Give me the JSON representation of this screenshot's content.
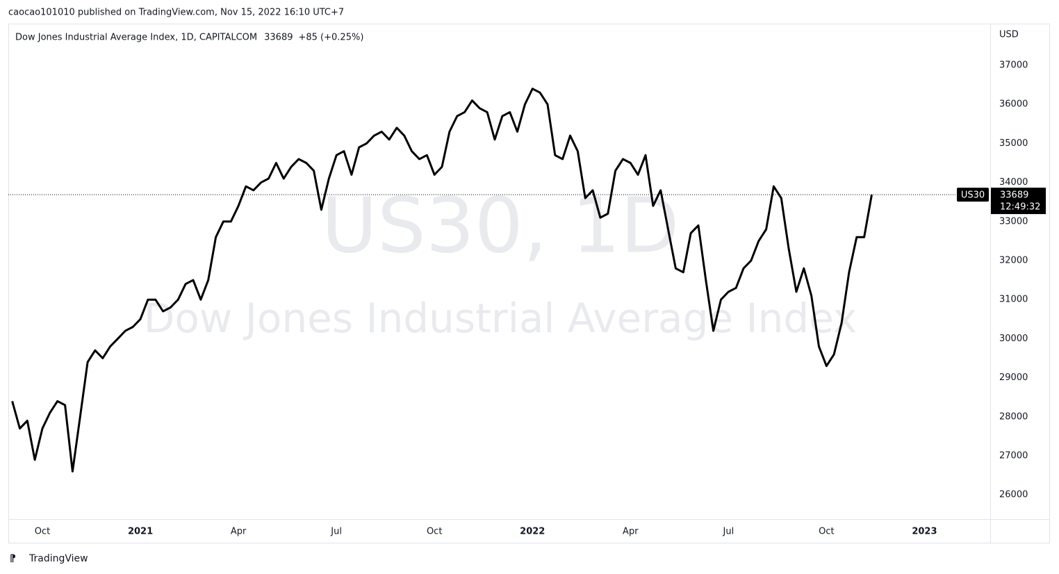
{
  "header": {
    "byline": "caocao101010 published on TradingView.com, Nov 15, 2022 16:10 UTC+7"
  },
  "footer": {
    "brand": "TradingView"
  },
  "chart_data": {
    "type": "line",
    "title": "Dow Jones Industrial Average Index, 1D, CAPITALCOM",
    "change": "+85 (+0.25%)",
    "watermark": "US30, 1D",
    "watermark_subtitle": "Dow Jones Industrial Average Index",
    "symbol": "US30",
    "countdown": "12:49:32",
    "y_unit": "USD",
    "color": "#000000",
    "grid": false,
    "ylim": [
      25380,
      38050
    ],
    "yticks": [
      26000,
      27000,
      28000,
      29000,
      30000,
      31000,
      32000,
      33000,
      34000,
      35000,
      36000,
      37000
    ],
    "categories": [
      null,
      null,
      null,
      null,
      "Oct",
      null,
      null,
      null,
      null,
      null,
      null,
      null,
      null,
      null,
      null,
      null,
      null,
      "2021",
      null,
      null,
      null,
      null,
      null,
      null,
      null,
      null,
      null,
      null,
      null,
      null,
      "Apr",
      null,
      null,
      null,
      null,
      null,
      null,
      null,
      null,
      null,
      null,
      null,
      null,
      "Jul",
      null,
      null,
      null,
      null,
      null,
      null,
      null,
      null,
      null,
      null,
      null,
      null,
      "Oct",
      null,
      null,
      null,
      null,
      null,
      null,
      null,
      null,
      null,
      null,
      null,
      null,
      "2022",
      null,
      null,
      null,
      null,
      null,
      null,
      null,
      null,
      null,
      null,
      null,
      null,
      "Apr",
      null,
      null,
      null,
      null,
      null,
      null,
      null,
      null,
      null,
      null,
      null,
      null,
      "Jul",
      null,
      null,
      null,
      null,
      null,
      null,
      null,
      null,
      null,
      null,
      null,
      null,
      "Oct",
      null,
      null,
      null,
      null,
      null,
      null,
      null,
      null,
      null,
      null,
      null,
      null,
      "2023",
      null,
      null,
      null,
      null,
      null,
      null,
      null,
      null
    ],
    "values": [
      28400,
      27700,
      27900,
      26900,
      27700,
      28100,
      28400,
      28300,
      26600,
      28000,
      29400,
      29700,
      29500,
      29800,
      30000,
      30200,
      30300,
      30500,
      31000,
      31000,
      30700,
      30800,
      31000,
      31400,
      31500,
      31000,
      31500,
      32600,
      33000,
      33000,
      33400,
      33900,
      33800,
      34000,
      34100,
      34500,
      34100,
      34400,
      34600,
      34500,
      34300,
      33300,
      34100,
      34700,
      34800,
      34200,
      34900,
      35000,
      35200,
      35300,
      35100,
      35400,
      35200,
      34800,
      34600,
      34700,
      34200,
      34400,
      35300,
      35700,
      35800,
      36100,
      35900,
      35800,
      35100,
      35700,
      35800,
      35300,
      36000,
      36400,
      36300,
      36000,
      34700,
      34600,
      35200,
      34800,
      33600,
      33800,
      33100,
      33200,
      34300,
      34600,
      34500,
      34200,
      34700,
      33400,
      33800,
      32800,
      31800,
      31700,
      32700,
      32900,
      31500,
      30200,
      31000,
      31200,
      31300,
      31800,
      32000,
      32500,
      32800,
      33900,
      33600,
      32300,
      31200,
      31800,
      31100,
      29800,
      29300,
      29600,
      30400,
      31700,
      32600,
      32600,
      33689,
      null,
      null,
      null,
      null,
      null,
      null,
      null,
      null,
      null,
      null,
      null,
      null,
      null,
      null,
      null
    ]
  }
}
